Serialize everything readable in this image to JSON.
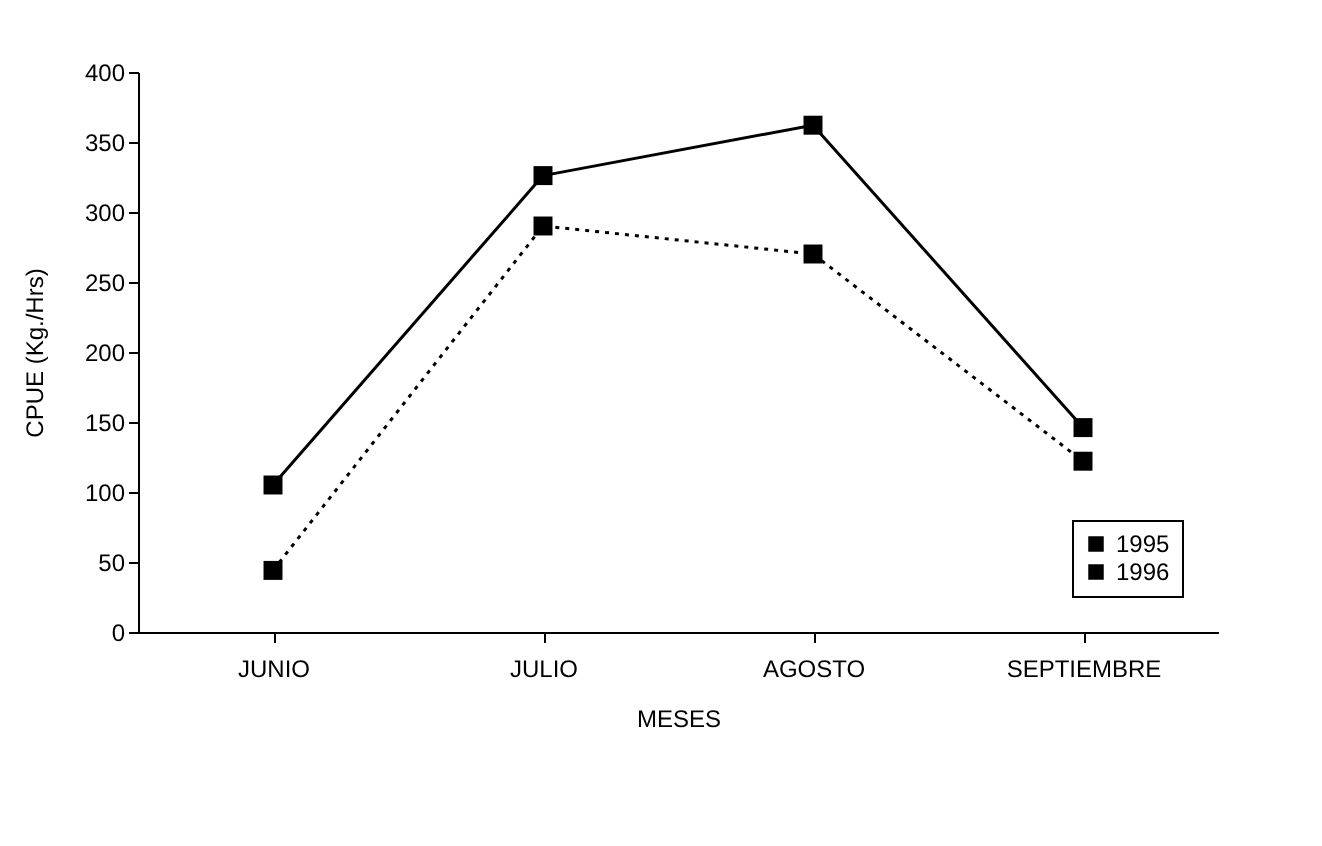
{
  "chart_data": {
    "type": "line",
    "xlabel": "MESES",
    "ylabel": "CPUE (Kg./Hrs)",
    "categories": [
      "JUNIO",
      "JULIO",
      "AGOSTO",
      "SEPTIEMBRE"
    ],
    "series": [
      {
        "name": "1995",
        "color": "#000000",
        "line_style": "solid",
        "values": [
          105,
          326,
          362,
          146
        ]
      },
      {
        "name": "1996",
        "color": "#000000",
        "line_style": "dotted",
        "values": [
          44,
          290,
          270,
          122
        ]
      }
    ],
    "ylim": [
      0,
      400
    ],
    "yticks": [
      0,
      50,
      100,
      150,
      200,
      250,
      300,
      350,
      400
    ],
    "grid": false,
    "legend": "bottom right",
    "marker": "square"
  }
}
